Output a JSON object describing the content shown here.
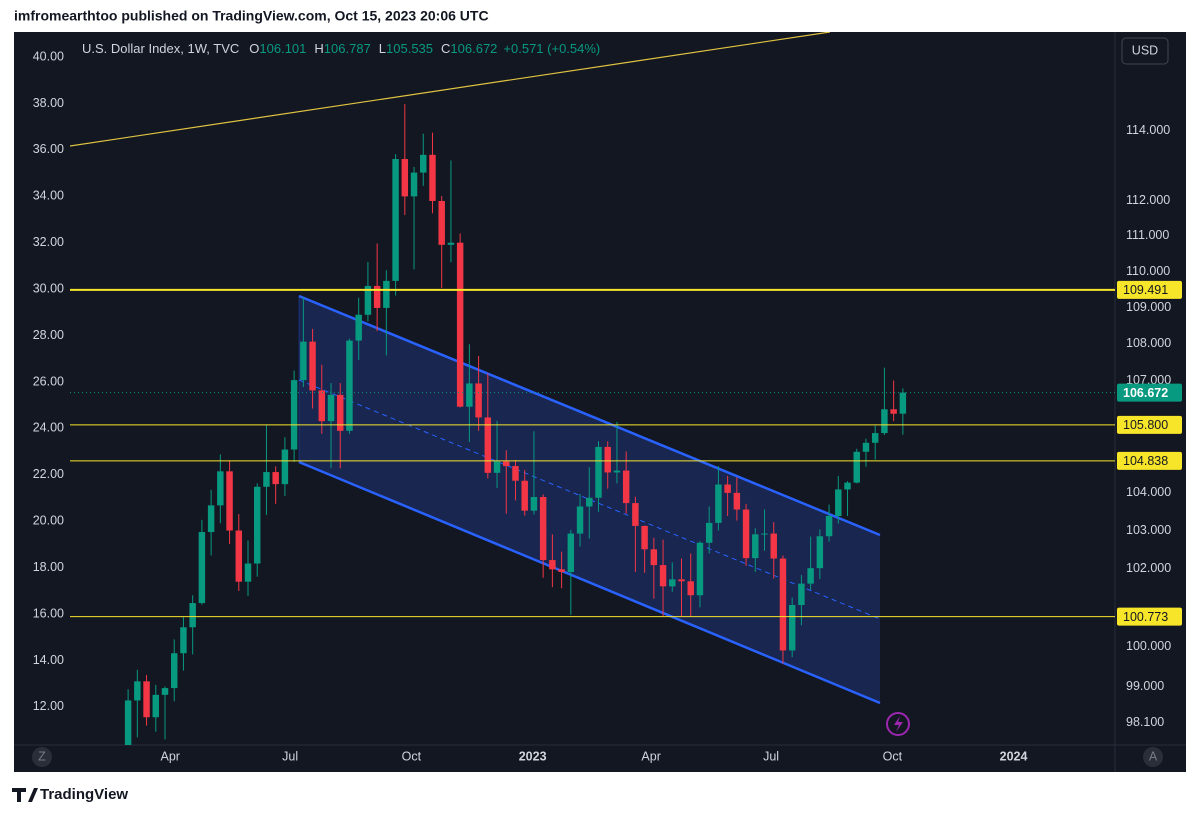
{
  "header": {
    "published": "imfromearthtoo published on TradingView.com, Oct 15, 2023 20:06 UTC"
  },
  "footer": {
    "brand": "TradingView"
  },
  "buttons": {
    "currency": "USD",
    "left": "Z",
    "right": "A"
  },
  "chart_data": {
    "type": "candlestick",
    "title": "U.S. Dollar Index, 1W, TVC",
    "ohlc_letters": [
      "O",
      "H",
      "L",
      "C"
    ],
    "change": "+0.571 (+0.54%)",
    "xlim": [
      -6.3,
      107.0
    ],
    "xticks": [
      {
        "value": 4.57,
        "label": "Apr"
      },
      {
        "value": 17.57,
        "label": "Jul"
      },
      {
        "value": 30.71,
        "label": "Oct"
      },
      {
        "value": 43.86,
        "label": "2023"
      },
      {
        "value": 56.71,
        "label": "Apr"
      },
      {
        "value": 69.71,
        "label": "Jul"
      },
      {
        "value": 82.86,
        "label": "Oct"
      },
      {
        "value": 96.0,
        "label": "2024"
      }
    ],
    "ylim": [
      10.36,
      41.08
    ],
    "yticks": [
      {
        "value": 40,
        "label": "40.00"
      },
      {
        "value": 38,
        "label": "38.00"
      },
      {
        "value": 36,
        "label": "36.00"
      },
      {
        "value": 34,
        "label": "34.00"
      },
      {
        "value": 32,
        "label": "32.00"
      },
      {
        "value": 30,
        "label": "30.00"
      },
      {
        "value": 28,
        "label": "28.00"
      },
      {
        "value": 26,
        "label": "26.00"
      },
      {
        "value": 24,
        "label": "24.00"
      },
      {
        "value": 22,
        "label": "22.00"
      },
      {
        "value": 20,
        "label": "20.00"
      },
      {
        "value": 18,
        "label": "18.00"
      },
      {
        "value": 16,
        "label": "16.00"
      },
      {
        "value": 14,
        "label": "14.00"
      },
      {
        "value": 12,
        "label": "12.00"
      }
    ],
    "y2lim": [
      97.54,
      116.9
    ],
    "y2_log_scale": true,
    "y2ticks": [
      {
        "value": 114,
        "label": "114.000"
      },
      {
        "value": 112,
        "label": "112.000"
      },
      {
        "value": 111,
        "label": "111.000"
      },
      {
        "value": 110,
        "label": "110.000"
      },
      {
        "value": 109,
        "label": "109.000"
      },
      {
        "value": 108,
        "label": "108.000"
      },
      {
        "value": 107,
        "label": "107.000"
      },
      {
        "value": 104,
        "label": "104.000"
      },
      {
        "value": 103,
        "label": "103.000"
      },
      {
        "value": 102,
        "label": "102.000"
      },
      {
        "value": 100,
        "label": "100.000"
      },
      {
        "value": 99,
        "label": "99.000"
      },
      {
        "value": 98.1,
        "label": "98.100"
      }
    ],
    "levels": [
      {
        "value": 109.491,
        "label": "109.491",
        "width": 2
      },
      {
        "value": 105.8,
        "label": "105.800",
        "width": 1
      },
      {
        "value": 104.838,
        "label": "104.838",
        "width": 1
      },
      {
        "value": 100.773,
        "label": "100.773",
        "width": 1
      }
    ],
    "level_color": "#f7e52a",
    "grid": false,
    "series": [
      {
        "axis": "y2",
        "up_color": "#089981",
        "down_color": "#f23645",
        "open": [
          96.6,
          98.65,
          99.13,
          98.23,
          98.79,
          98.96,
          99.84,
          100.5,
          101.12,
          102.96,
          103.66,
          104.56,
          103.0,
          101.67,
          102.14,
          104.15,
          104.54,
          104.22,
          105.14,
          107.01,
          108.06,
          106.73,
          105.9,
          106.61,
          105.64,
          108.09,
          108.8,
          109.6,
          108.99,
          109.74,
          113.19,
          112.12,
          112.8,
          113.31,
          111.99,
          110.75,
          110.81,
          106.29,
          106.92,
          106.0,
          104.52,
          104.82,
          104.7,
          104.31,
          103.52,
          103.88,
          102.23,
          101.99,
          101.92,
          102.92,
          103.63,
          103.86,
          105.21,
          104.53,
          104.58,
          103.72,
          103.12,
          102.51,
          102.1,
          101.55,
          101.73,
          101.68,
          101.32,
          102.68,
          103.2,
          104.21,
          103.99,
          103.55,
          102.28,
          102.9,
          102.92,
          102.27,
          99.91,
          101.07,
          101.62,
          102.02,
          102.85,
          103.38,
          104.08,
          104.26,
          105.08,
          105.32,
          105.58,
          106.22,
          106.101
        ],
        "high": [
          98.93,
          99.42,
          99.29,
          99.04,
          99.0,
          100.19,
          100.76,
          101.32,
          103.28,
          104.07,
          105.01,
          104.85,
          103.43,
          102.74,
          104.24,
          105.79,
          104.69,
          105.47,
          107.27,
          109.29,
          108.41,
          107.43,
          106.93,
          106.93,
          108.14,
          109.27,
          110.27,
          110.79,
          110.04,
          113.33,
          114.78,
          112.96,
          113.92,
          113.95,
          112.13,
          113.15,
          111.07,
          107.99,
          107.67,
          107.19,
          105.91,
          105.12,
          104.86,
          104.6,
          105.63,
          103.95,
          102.9,
          102.45,
          103.02,
          103.96,
          104.67,
          105.36,
          105.36,
          105.88,
          105.09,
          103.89,
          103.13,
          102.81,
          102.76,
          102.17,
          102.27,
          102.4,
          102.72,
          103.63,
          104.7,
          104.44,
          104.4,
          103.7,
          103.06,
          103.55,
          103.22,
          102.35,
          101.26,
          101.84,
          102.84,
          103.03,
          103.68,
          104.44,
          104.3,
          105.16,
          105.43,
          105.78,
          107.35,
          107.0,
          106.787
        ],
        "low": [
          96.6,
          97.73,
          98.02,
          97.87,
          97.68,
          98.63,
          99.4,
          99.81,
          101.08,
          102.35,
          103.19,
          102.65,
          101.43,
          101.3,
          101.8,
          103.41,
          103.7,
          103.91,
          104.81,
          106.82,
          106.24,
          105.56,
          104.64,
          104.64,
          105.56,
          107.56,
          108.62,
          108.35,
          107.68,
          109.33,
          111.59,
          110.06,
          112.42,
          111.64,
          109.54,
          110.26,
          106.27,
          105.34,
          105.64,
          104.37,
          104.12,
          103.44,
          103.79,
          103.39,
          103.42,
          101.77,
          101.53,
          101.5,
          100.82,
          102.58,
          102.79,
          103.49,
          104.1,
          104.24,
          103.44,
          101.92,
          101.9,
          101.23,
          100.79,
          101.41,
          100.79,
          100.78,
          101.01,
          102.4,
          103.0,
          103.38,
          103.26,
          102.08,
          101.92,
          102.47,
          101.75,
          99.58,
          99.74,
          100.55,
          101.46,
          101.74,
          102.71,
          103.18,
          103.38,
          104.24,
          104.68,
          104.87,
          105.53,
          105.9,
          105.535
        ],
        "close": [
          98.65,
          99.13,
          98.23,
          98.79,
          98.96,
          99.84,
          100.5,
          101.12,
          102.96,
          103.66,
          104.56,
          103.0,
          101.67,
          102.14,
          104.15,
          104.54,
          104.22,
          105.14,
          107.01,
          108.06,
          106.73,
          105.9,
          106.61,
          105.64,
          108.09,
          108.8,
          109.6,
          108.99,
          109.74,
          113.19,
          112.12,
          112.8,
          113.31,
          111.99,
          110.75,
          110.81,
          106.29,
          106.92,
          106.0,
          104.52,
          104.82,
          104.7,
          104.31,
          103.52,
          103.88,
          102.23,
          101.99,
          101.92,
          102.92,
          103.63,
          103.86,
          105.21,
          104.53,
          104.58,
          103.72,
          103.12,
          102.51,
          102.1,
          101.55,
          101.73,
          101.68,
          101.32,
          102.68,
          103.2,
          104.21,
          103.99,
          103.55,
          102.28,
          102.9,
          102.92,
          102.27,
          99.91,
          101.07,
          101.62,
          102.02,
          102.85,
          103.38,
          104.08,
          104.26,
          105.08,
          105.32,
          105.58,
          106.22,
          106.1,
          106.672
        ]
      }
    ]
  }
}
